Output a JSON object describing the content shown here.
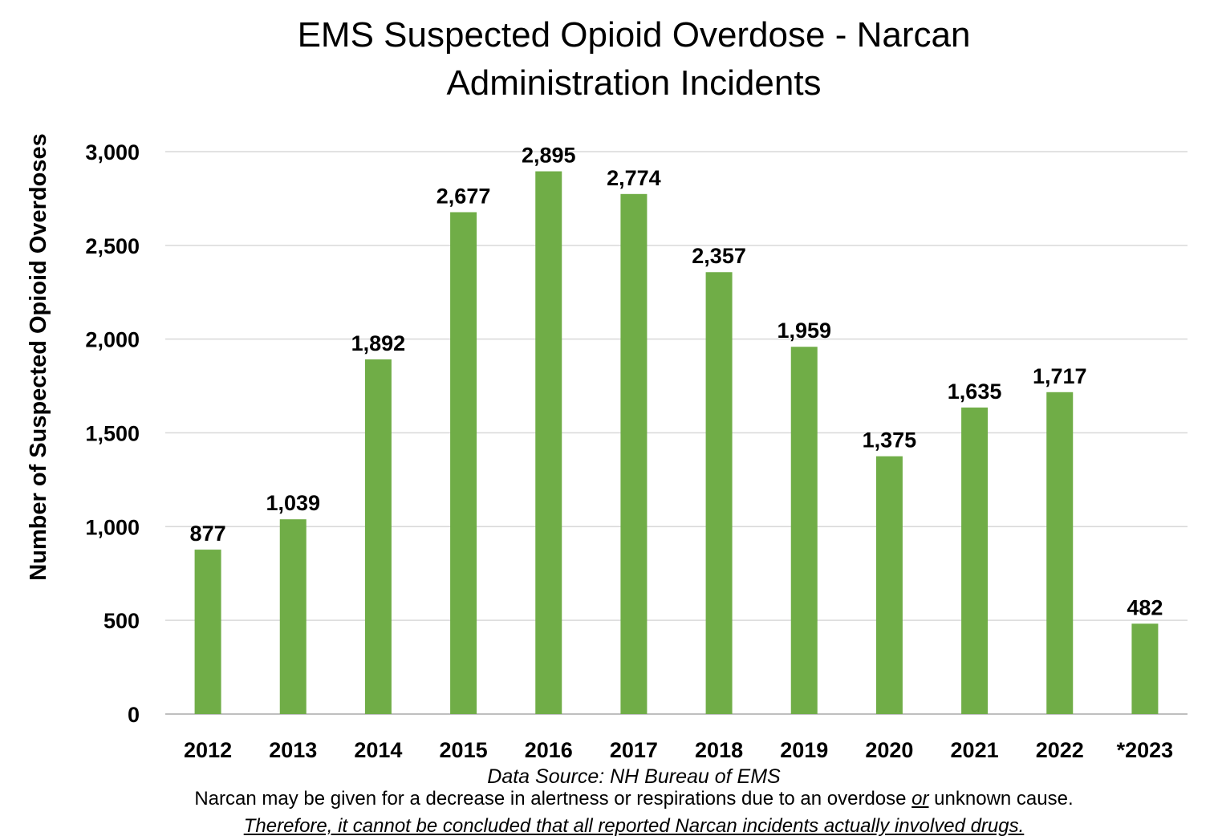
{
  "chart_data": {
    "type": "bar",
    "title": "EMS Suspected Opioid Overdose - Narcan Administration Incidents",
    "title_lines": [
      "EMS Suspected Opioid Overdose - Narcan",
      "Administration Incidents"
    ],
    "ylabel": "Number of Suspected Opioid Overdoses",
    "xlabel": "",
    "categories": [
      "2012",
      "2013",
      "2014",
      "2015",
      "2016",
      "2017",
      "2018",
      "2019",
      "2020",
      "2021",
      "2022",
      "*2023"
    ],
    "values": [
      877,
      1039,
      1892,
      2677,
      2895,
      2774,
      2357,
      1959,
      1375,
      1635,
      1717,
      482
    ],
    "data_labels": [
      "877",
      "1,039",
      "1,892",
      "2,677",
      "2,895",
      "2,774",
      "2,357",
      "1,959",
      "1,375",
      "1,635",
      "1,717",
      "482"
    ],
    "ylim": [
      0,
      3000
    ],
    "yticks": [
      0,
      500,
      1000,
      1500,
      2000,
      2500,
      3000
    ],
    "ytick_labels": [
      "0",
      "500",
      "1,000",
      "1,500",
      "2,000",
      "2,500",
      "3,000"
    ],
    "grid": true,
    "legend": "none",
    "bar_color": "#70AD47",
    "grid_color": "#D9D9D9"
  },
  "footer": {
    "source": "Data Source: NH Bureau of EMS",
    "note_part1": "Narcan may be given for a decrease in alertness or respirations due to an overdose ",
    "note_emph": "or",
    "note_part2": " unknown cause.",
    "note_line2": "Therefore, it cannot be concluded that all reported Narcan incidents actually involved drugs."
  }
}
